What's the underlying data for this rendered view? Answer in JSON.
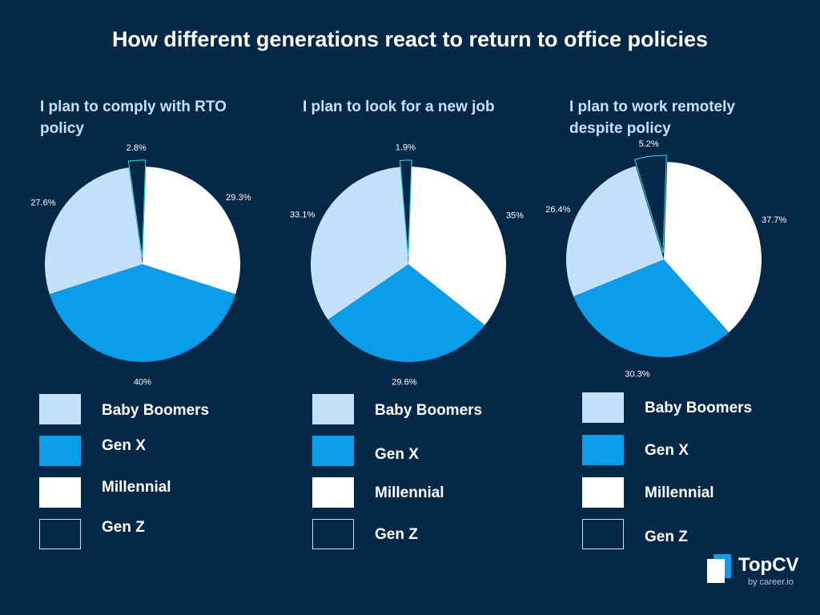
{
  "title": "How different generations react to return to office policies",
  "colors": {
    "background": "#052848",
    "baby_boomers": "#c3e1fb",
    "gen_x": "#0b9dea",
    "millennial": "#ffffff",
    "gen_z": "#052848",
    "subtitle": "#c3e1fb"
  },
  "legend": {
    "baby_boomers": "Baby Boomers",
    "gen_x": "Gen X",
    "millennial": "Millennial",
    "gen_z": "Gen Z"
  },
  "brand": {
    "name": "TopCV",
    "by": "by career.io",
    "icon": "topcv-logo-icon"
  },
  "chart_data": [
    {
      "type": "pie",
      "title": "I plan to comply with RTO policy",
      "categories": [
        "Millennial",
        "Gen X",
        "Baby Boomers",
        "Gen Z"
      ],
      "values": [
        29.3,
        40,
        27.6,
        2.8
      ],
      "labels": [
        "29.3%",
        "40%",
        "27.6%",
        "2.8%"
      ]
    },
    {
      "type": "pie",
      "title": "I plan to look for a new job",
      "categories": [
        "Millennial",
        "Gen X",
        "Baby Boomers",
        "Gen Z"
      ],
      "values": [
        35,
        29.6,
        33.1,
        1.9
      ],
      "labels": [
        "35%",
        "29.6%",
        "33.1%",
        "1.9%"
      ]
    },
    {
      "type": "pie",
      "title": "I plan to work remotely despite policy",
      "categories": [
        "Millennial",
        "Gen X",
        "Baby Boomers",
        "Gen Z"
      ],
      "values": [
        37.7,
        30.3,
        26.4,
        5.2
      ],
      "labels": [
        "37.7%",
        "30.3%",
        "26.4%",
        "5.2%"
      ]
    }
  ]
}
